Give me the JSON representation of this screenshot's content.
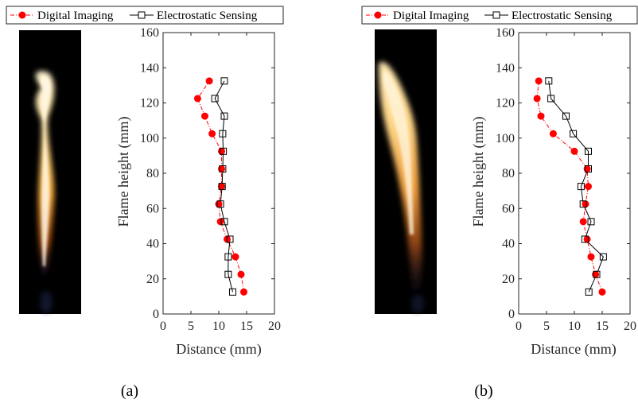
{
  "legend": {
    "digital": "Digital Imaging",
    "electrostatic": "Electrostatic Sensing"
  },
  "colors": {
    "digital": "#ff0000",
    "electrostatic": "#000000",
    "axis": "#262626"
  },
  "chart_data": [
    {
      "type": "line",
      "caption": "(a)",
      "xlabel": "Distance (mm)",
      "ylabel": "Flame height (mm)",
      "xlim": [
        0,
        20
      ],
      "ylim": [
        0,
        160
      ],
      "xticks": [
        "0",
        "5",
        "10",
        "15",
        "20"
      ],
      "yticks": [
        "0",
        "20",
        "40",
        "60",
        "80",
        "100",
        "120",
        "140",
        "160"
      ],
      "grid": false,
      "legend_position": "top",
      "series": [
        {
          "name": "Digital Imaging",
          "marker": "filled-circle",
          "line": "dash-dot",
          "points": [
            [
              14.5,
              12.5
            ],
            [
              14.0,
              22.5
            ],
            [
              13.0,
              32.5
            ],
            [
              11.5,
              42.5
            ],
            [
              10.3,
              52.5
            ],
            [
              10.0,
              62.5
            ],
            [
              10.5,
              72.5
            ],
            [
              10.5,
              82.5
            ],
            [
              10.5,
              92.5
            ],
            [
              8.8,
              102.5
            ],
            [
              7.5,
              112.5
            ],
            [
              6.2,
              122.5
            ],
            [
              8.3,
              132.5
            ]
          ]
        },
        {
          "name": "Electrostatic Sensing",
          "marker": "open-square",
          "line": "solid",
          "points": [
            [
              12.5,
              12.5
            ],
            [
              11.7,
              22.5
            ],
            [
              11.7,
              32.5
            ],
            [
              12.0,
              42.5
            ],
            [
              11.0,
              52.5
            ],
            [
              10.3,
              62.5
            ],
            [
              10.6,
              72.5
            ],
            [
              10.7,
              82.5
            ],
            [
              10.8,
              92.5
            ],
            [
              10.7,
              102.5
            ],
            [
              11.0,
              112.5
            ],
            [
              9.3,
              122.5
            ],
            [
              11.0,
              132.5
            ]
          ]
        }
      ]
    },
    {
      "type": "line",
      "caption": "(b)",
      "xlabel": "Distance (mm)",
      "ylabel": "Flame height (mm)",
      "xlim": [
        0,
        20
      ],
      "ylim": [
        0,
        160
      ],
      "xticks": [
        "0",
        "5",
        "10",
        "15",
        "20"
      ],
      "yticks": [
        "0",
        "20",
        "40",
        "60",
        "80",
        "100",
        "120",
        "140",
        "160"
      ],
      "grid": false,
      "legend_position": "top",
      "series": [
        {
          "name": "Digital Imaging",
          "marker": "filled-circle",
          "line": "dash-dot",
          "points": [
            [
              15.0,
              12.5
            ],
            [
              13.8,
              22.5
            ],
            [
              13.0,
              32.5
            ],
            [
              12.3,
              42.5
            ],
            [
              11.6,
              52.5
            ],
            [
              12.0,
              62.5
            ],
            [
              12.5,
              72.5
            ],
            [
              12.3,
              82.5
            ],
            [
              10.0,
              92.5
            ],
            [
              6.2,
              102.5
            ],
            [
              4.0,
              112.5
            ],
            [
              3.3,
              122.5
            ],
            [
              3.6,
              132.5
            ]
          ]
        },
        {
          "name": "Electrostatic Sensing",
          "marker": "open-square",
          "line": "solid",
          "points": [
            [
              12.6,
              12.5
            ],
            [
              14.0,
              22.5
            ],
            [
              15.2,
              32.5
            ],
            [
              11.9,
              42.5
            ],
            [
              13.0,
              52.5
            ],
            [
              11.6,
              62.5
            ],
            [
              11.2,
              72.5
            ],
            [
              12.5,
              82.5
            ],
            [
              12.5,
              92.5
            ],
            [
              9.8,
              102.5
            ],
            [
              8.5,
              112.5
            ],
            [
              5.8,
              122.5
            ],
            [
              5.4,
              132.5
            ]
          ]
        }
      ]
    }
  ]
}
